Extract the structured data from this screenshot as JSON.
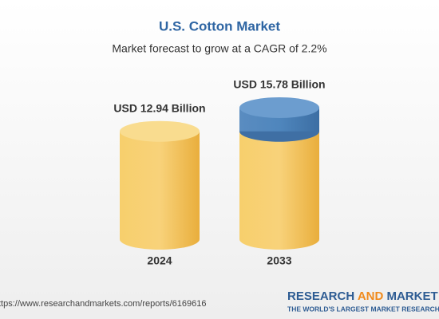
{
  "chart_data": {
    "type": "cylinder",
    "title": "U.S. Cotton Market",
    "subtitle": "Market forecast to grow at a CAGR of 2.2%",
    "categories": [
      "2024",
      "2033"
    ],
    "values": [
      12.94,
      15.78
    ],
    "value_labels": [
      "USD 12.94 Billion",
      "USD 15.78 Billion"
    ],
    "color": "#f2c35a",
    "growth_color": "#4a7eb3",
    "source": "ttps://www.researchandmarkets.com/reports/6169616",
    "logo": {
      "brand": [
        "RESEARCH",
        "AND",
        "MARKET"
      ],
      "tagline": "THE WORLD'S LARGEST MARKET RESEARCH STO"
    }
  }
}
